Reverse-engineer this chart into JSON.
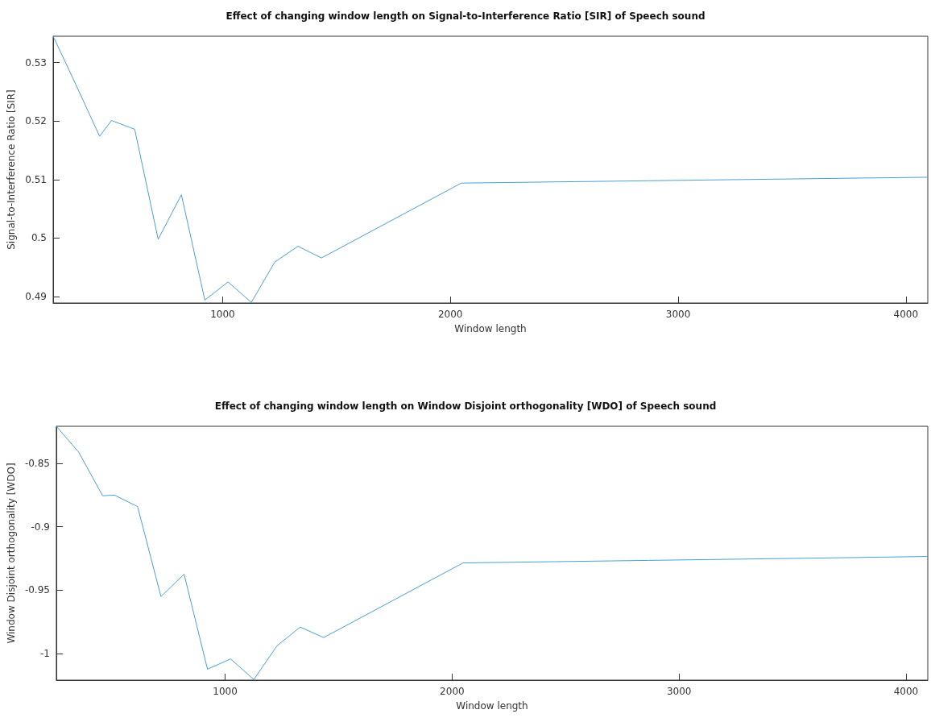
{
  "chart_data": [
    {
      "type": "line",
      "title": "Effect of changing window length on Signal-to-Interference Ratio [SIR] of Speech sound",
      "xlabel": "Window length",
      "ylabel": "Signal-to-Interference Ratio [SIR]",
      "x": [
        256,
        355,
        460,
        512,
        614,
        717,
        819,
        922,
        1024,
        1126,
        1229,
        1331,
        1434,
        2048,
        2458,
        2867,
        3277,
        3686,
        4096
      ],
      "series": [
        {
          "color": "#4a9fd8",
          "values": [
            0.5345,
            0.5263,
            0.5174,
            0.5201,
            0.5186,
            0.4998,
            0.5074,
            0.4894,
            0.4925,
            0.489,
            0.4959,
            0.4986,
            0.4966,
            0.5094,
            0.5096,
            0.5098,
            0.51,
            0.5102,
            0.5104
          ]
        }
      ],
      "xlim": [
        256,
        4096
      ],
      "xticks": [
        1000,
        2000,
        3000,
        4000
      ],
      "ylim": [
        0.4889,
        0.5345
      ],
      "yticks": [
        0.49,
        0.5,
        0.51,
        0.52,
        0.53
      ],
      "marker": "none",
      "line_style": "solid"
    },
    {
      "type": "line",
      "title": "Effect of changing window length on Window Disjoint orthogonality [WDO] of Speech sound",
      "xlabel": "Window length",
      "ylabel": "Window Disjoint orthogonality [WDO]",
      "x": [
        256,
        355,
        460,
        512,
        614,
        717,
        819,
        922,
        1024,
        1126,
        1229,
        1331,
        1434,
        2048,
        2458,
        2867,
        3277,
        3686,
        4096
      ],
      "series": [
        {
          "color": "#4a9fd8",
          "values": [
            -0.8209,
            -0.8414,
            -0.8756,
            -0.8751,
            -0.8841,
            -0.955,
            -0.9374,
            -1.0122,
            -1.0041,
            -1.0203,
            -0.9937,
            -0.979,
            -0.9873,
            -0.9285,
            -0.9275,
            -0.9265,
            -0.9255,
            -0.9245,
            -0.9234
          ]
        }
      ],
      "xlim": [
        256,
        4096
      ],
      "xticks": [
        1000,
        2000,
        3000,
        4000
      ],
      "ylim": [
        -1.0208,
        -0.8209
      ],
      "yticks": [
        -1,
        -0.95,
        -0.9,
        -0.85
      ],
      "marker": "none",
      "line_style": "solid"
    }
  ]
}
